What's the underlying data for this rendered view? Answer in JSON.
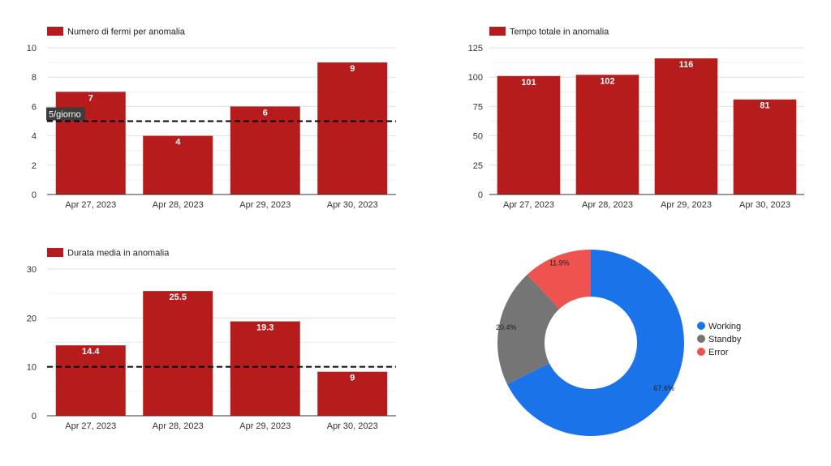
{
  "colors": {
    "bar": "#b71c1c",
    "grid": "#e0e0e0",
    "axis": "#333333",
    "working": "#1a73e8",
    "standby": "#757575",
    "error": "#ef5350",
    "reference_line": "#000000"
  },
  "chart_data": [
    {
      "type": "bar",
      "legend": "Numero di fermi per anomalia",
      "categories": [
        "Apr 27, 2023",
        "Apr 28, 2023",
        "Apr 29, 2023",
        "Apr 30, 2023"
      ],
      "values": [
        7,
        4,
        6,
        9
      ],
      "value_labels": [
        "7",
        "4",
        "6",
        "9"
      ],
      "ylim": [
        0,
        10
      ],
      "yticks": [
        0,
        2,
        4,
        6,
        8,
        10
      ],
      "reference_line": {
        "value": 5,
        "label": "5/giorno"
      },
      "grid": true,
      "legend_position": "top-left"
    },
    {
      "type": "bar",
      "legend": "Tempo totale in anomalia",
      "categories": [
        "Apr 27, 2023",
        "Apr 28, 2023",
        "Apr 29, 2023",
        "Apr 30, 2023"
      ],
      "values": [
        101,
        102,
        116,
        81
      ],
      "value_labels": [
        "101",
        "102",
        "116",
        "81"
      ],
      "ylim": [
        0,
        125
      ],
      "yticks": [
        0,
        25,
        50,
        75,
        100,
        125
      ],
      "grid": true,
      "legend_position": "top-left"
    },
    {
      "type": "bar",
      "legend": "Durata media in anomalia",
      "categories": [
        "Apr 27, 2023",
        "Apr 28, 2023",
        "Apr 29, 2023",
        "Apr 30, 2023"
      ],
      "values": [
        14.4,
        25.5,
        19.3,
        9
      ],
      "value_labels": [
        "14.4",
        "25.5",
        "19.3",
        "9"
      ],
      "ylim": [
        0,
        30
      ],
      "yticks": [
        0,
        10,
        20,
        30
      ],
      "reference_line": {
        "value": 10
      },
      "grid": true,
      "legend_position": "top-left"
    },
    {
      "type": "pie",
      "donut": true,
      "slices": [
        {
          "label": "Working",
          "value": 67.6,
          "display": "67.6%",
          "color_key": "working"
        },
        {
          "label": "Standby",
          "value": 20.4,
          "display": "20.4%",
          "color_key": "standby"
        },
        {
          "label": "Error",
          "value": 11.9,
          "display": "11.9%",
          "color_key": "error"
        }
      ],
      "legend_position": "right"
    }
  ]
}
